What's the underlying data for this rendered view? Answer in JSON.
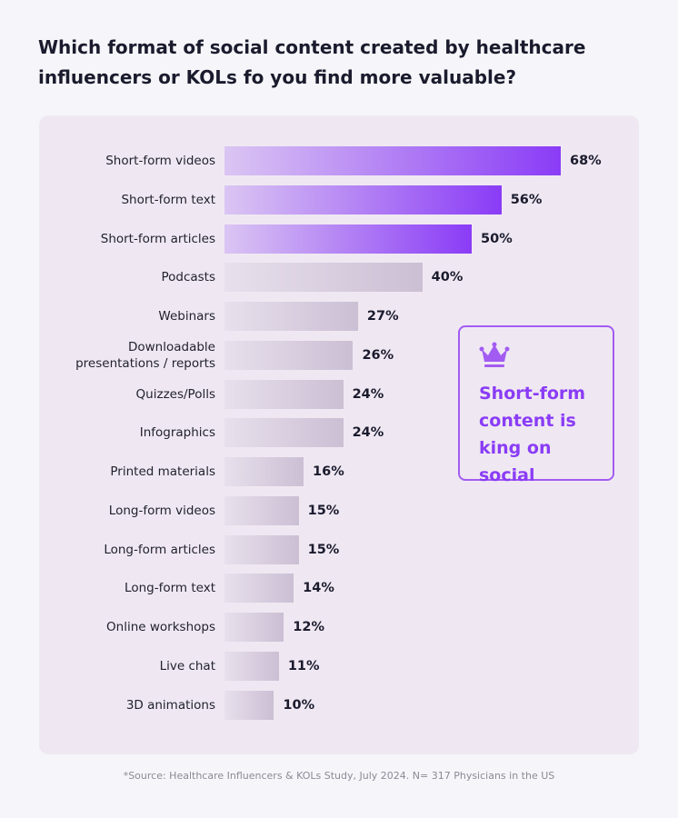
{
  "chart_data": {
    "type": "bar",
    "orientation": "horizontal",
    "title": "Which format of social content created by healthcare influencers or KOLs fo you find more valuable?",
    "categories": [
      "Short-form videos",
      "Short-form text",
      "Short-form articles",
      "Podcasts",
      "Webinars",
      "Downloadable presentations / reports",
      "Quizzes/Polls",
      "Infographics",
      "Printed materials",
      "Long-form videos",
      "Long-form articles",
      "Long-form text",
      "Online workshops",
      "Live chat",
      "3D animations"
    ],
    "values": [
      68,
      56,
      50,
      40,
      27,
      26,
      24,
      24,
      16,
      15,
      15,
      14,
      12,
      11,
      10
    ],
    "value_labels": [
      "68%",
      "56%",
      "50%",
      "40%",
      "27%",
      "26%",
      "24%",
      "24%",
      "16%",
      "15%",
      "15%",
      "14%",
      "12%",
      "11%",
      "10%"
    ],
    "colors": [
      "#8a3cf6",
      "#8a3cf6",
      "#8a3cf6",
      "#cbbfd4",
      "#cbbfd4",
      "#cbbfd4",
      "#cbbfd4",
      "#cbbfd4",
      "#cbbfd4",
      "#cbbfd4",
      "#cbbfd4",
      "#cbbfd4",
      "#cbbfd4",
      "#cbbfd4",
      "#cbbfd4"
    ],
    "annotation": "Short-form content is king on social",
    "source": "*Source: Healthcare Influencers & KOLs Study, July 2024. N= 317 Physicians in the US"
  }
}
